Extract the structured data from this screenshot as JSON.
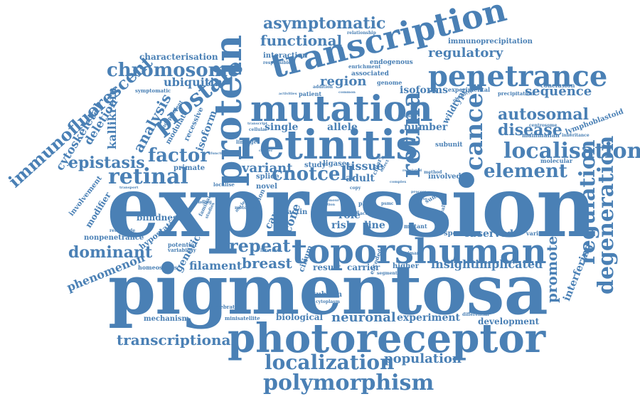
{
  "colors": {
    "word": "#4a80b5",
    "background": "#ffffff"
  },
  "words": {
    "expression": "expression",
    "pigmentosa": "pigmentosa",
    "photoreceptor": "photoreceptor",
    "toporshuman": "toporshuman",
    "retinitis": "retinitis",
    "mutation": "mutation",
    "transcription": "transcription",
    "protein": "protein",
    "penetrance": "penetrance",
    "localisation": "localisation",
    "polymorphism": "polymorphism",
    "localization": "localization",
    "retina": "retina",
    "cancer": "cancer",
    "regulation": "regulation",
    "degeneration": "degeneration",
    "prostate": "prostate",
    "chromosome": "chromosome",
    "immunofluorescent": "immunofluorescent",
    "asymptomatic": "asymptomatic",
    "functional": "functional",
    "regulatory": "regulatory",
    "immunoprecipitation": "immunoprecipitation",
    "characterisation": "characterisation",
    "ubiquitin": "ubiquitin",
    "region": "region",
    "isoforms": "isoforms",
    "sequence": "sequence",
    "autosomal": "autosomal",
    "disease": "disease",
    "element": "element",
    "factor": "factor",
    "retinal": "retinal",
    "epistasis": "epistasis",
    "cytoskeletal": "cytoskeletal",
    "kallikrein": "kallikrein",
    "analysis": "analysis",
    "deletion": "deletion",
    "variant": "variant",
    "cnotcell": "cnotcell",
    "tissue": "tissue",
    "adult": "adult",
    "allele": "allele",
    "single": "single",
    "number": "number",
    "dominant": "dominant",
    "repeat": "repeat",
    "breast": "breast",
    "filament": "filament",
    "phenomenon": "phenomenon",
    "genetic": "genetic",
    "promoter": "promoter",
    "interfering": "interfering",
    "insight": "insight",
    "implicated": "implicated",
    "observed": "observed",
    "transcriptional": "transcriptional",
    "neuronal": "neuronal",
    "experiment": "experiment",
    "development": "development",
    "population": "population",
    "mechanism": "mechanism",
    "biological": "biological",
    "tubulin": "tubulin",
    "modifier": "modifier",
    "involvement": "involvement",
    "nonpenetrance": "nonpenetrance",
    "blindness": "blindness",
    "hypostatic": "hypostatic",
    "homeostasis": "homeostasis",
    "cause": "cause",
    "cone": "cone",
    "role": "role",
    "risk": "risk",
    "line": "line",
    "result": "result",
    "carrier": "carrier",
    "specific": "specific",
    "variation": "variation",
    "lymphoblastoid": "lymphoblastoid",
    "mammalian": "mammalian",
    "molecular": "molecular",
    "involved": "involved",
    "wildtype": "wildtype",
    "subunit": "subunit",
    "conclusion": "conclusion",
    "precipitation": "precipitation",
    "experimental": "experimental",
    "interaction": "interaction",
    "endogenous": "endogenous",
    "associated": "associated",
    "enrichment": "enrichment",
    "genome": "genome",
    "relationship": "relationship",
    "responsible": "responsible",
    "patient": "patient",
    "addition": "addition",
    "activities": "activities",
    "common": "common",
    "isoform": "isoform",
    "modulate": "modulate",
    "recessive": "recessive",
    "independent": "independent",
    "symptomatic": "symptomatic",
    "primate": "primate",
    "study": "study",
    "ligase": "ligase",
    "splice": "splice",
    "novel": "novel",
    "localise": "localise",
    "section": "section",
    "potential": "potential",
    "variability": "variability",
    "minisatellite": "minisatellite",
    "vertebrate": "vertebrate",
    "cytoplasm": "cytoplasm",
    "encoded": "encoded",
    "segment": "segment",
    "primary": "primary",
    "higher": "higher",
    "mutant": "mutant",
    "activity": "activity",
    "p26s": "p26s",
    "psmc": "psmc",
    "acting": "acting",
    "method": "method",
    "ciliary": "ciliary",
    "sumo": "sumo",
    "health": "health",
    "differential": "differential",
    "inheritance": "inheritance",
    "centrosome": "centrosome",
    "cilium": "cilium",
    "interact": "interact",
    "actin": "actin",
    "retrograde": "retrograde",
    "transport": "transport",
    "linkage": "linkage",
    "cellular": "cellular",
    "transcript": "transcript",
    "cluster": "cluster",
    "function": "function",
    "familial": "familial",
    "studies": "studies",
    "finding": "finding",
    "nuclear": "nuclear",
    "motor": "motor",
    "effect": "effect",
    "copy": "copy",
    "phenotype": "phenotype",
    "variable": "variable",
    "regulated": "regulated",
    "analyse": "analyse",
    "process": "process",
    "correlation": "correlation",
    "tumour": "tumour",
    "complex": "complex"
  }
}
